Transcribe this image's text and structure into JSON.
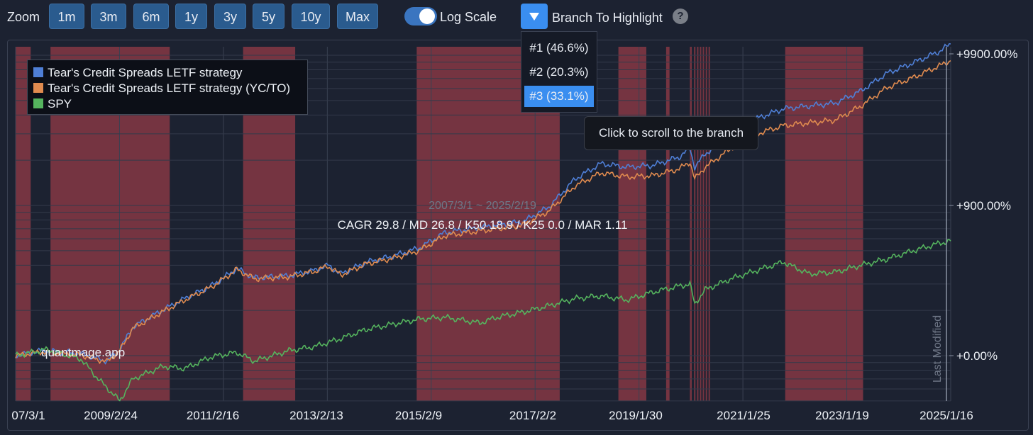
{
  "toolbar": {
    "zoom_label": "Zoom",
    "zoom_buttons": [
      "1m",
      "3m",
      "6m",
      "1y",
      "3y",
      "5y",
      "10y",
      "Max"
    ],
    "log_scale_label": "Log Scale",
    "log_scale_on": true,
    "branch_label": "Branch To Highlight",
    "help_icon": "?",
    "toggle_icon": "toggle-switch-icon",
    "dropdown_icon": "triangle-down-icon"
  },
  "branch_menu": {
    "items": [
      "#1 (46.6%)",
      "#2 (20.3%)",
      "#3 (33.1%)"
    ],
    "selected_index": 2
  },
  "tooltip": {
    "text": "Click to scroll to the branch"
  },
  "chart_data": {
    "type": "line",
    "title": "",
    "date_range_text": "2007/3/1 ~ 2025/2/19",
    "stats_text": "CAGR 29.8 / MD 26.8 / K50 18.9 / K25 0.0 / MAR 1.11",
    "watermark": "quantmage.app",
    "vertical_label": "Last Modified",
    "y_scale": "log",
    "x_ticks": [
      "07/3/1",
      "2009/2/24",
      "2011/2/16",
      "2013/2/13",
      "2015/2/9",
      "2017/2/2",
      "2019/1/30",
      "2021/1/25",
      "2023/1/19",
      "2025/1/16"
    ],
    "y_ticks": [
      "+9900.00%",
      "+900.00%",
      "+0.00%"
    ],
    "x_range": [
      "2007-03-01",
      "2025-02-19"
    ],
    "y_range_percent": [
      -60,
      13000
    ],
    "legend_position": "top-left",
    "grid": true,
    "colors": {
      "background": "#1c2231",
      "highlight_band": "#8e3a46",
      "strategy": "#4f7fd6",
      "strategy_yc": "#e08b4f",
      "spy": "#55b45e"
    },
    "highlight_periods": [
      [
        "2007-03-01",
        "2007-06-15"
      ],
      [
        "2007-11-01",
        "2010-02-15"
      ],
      [
        "2011-07-15",
        "2012-07-15"
      ],
      [
        "2014-11-15",
        "2017-08-15"
      ],
      [
        "2018-10-01",
        "2019-04-15"
      ],
      [
        "2019-09-01",
        "2019-09-25"
      ],
      [
        "2020-02-15",
        "2020-02-28"
      ],
      [
        "2020-03-15",
        "2020-03-25"
      ],
      [
        "2020-04-05",
        "2020-04-15"
      ],
      [
        "2020-04-25",
        "2020-05-05"
      ],
      [
        "2020-05-15",
        "2020-05-25"
      ],
      [
        "2020-06-05",
        "2020-06-15"
      ],
      [
        "2020-06-25",
        "2020-07-05"
      ],
      [
        "2021-12-15",
        "2023-06-15"
      ]
    ],
    "series": [
      {
        "name": "Tear's Credit Spreads LETF strategy",
        "points": [
          [
            "2007-03-01",
            0
          ],
          [
            "2007-09-01",
            8
          ],
          [
            "2008-06-01",
            3
          ],
          [
            "2008-12-01",
            -8
          ],
          [
            "2009-03-01",
            10
          ],
          [
            "2009-06-01",
            55
          ],
          [
            "2009-12-01",
            95
          ],
          [
            "2010-06-01",
            140
          ],
          [
            "2010-12-01",
            190
          ],
          [
            "2011-03-01",
            230
          ],
          [
            "2011-06-01",
            280
          ],
          [
            "2011-10-01",
            230
          ],
          [
            "2012-06-01",
            240
          ],
          [
            "2012-12-01",
            270
          ],
          [
            "2013-03-01",
            300
          ],
          [
            "2013-06-01",
            250
          ],
          [
            "2013-12-01",
            320
          ],
          [
            "2014-06-01",
            360
          ],
          [
            "2014-12-01",
            420
          ],
          [
            "2015-06-01",
            560
          ],
          [
            "2016-06-01",
            640
          ],
          [
            "2016-12-01",
            680
          ],
          [
            "2017-06-01",
            880
          ],
          [
            "2017-12-01",
            1400
          ],
          [
            "2018-06-01",
            1800
          ],
          [
            "2018-12-01",
            1700
          ],
          [
            "2019-06-01",
            1750
          ],
          [
            "2019-12-01",
            2000
          ],
          [
            "2020-02-15",
            2300
          ],
          [
            "2020-03-20",
            1700
          ],
          [
            "2020-06-01",
            2100
          ],
          [
            "2020-12-01",
            2900
          ],
          [
            "2021-06-01",
            3700
          ],
          [
            "2021-12-01",
            4300
          ],
          [
            "2022-06-01",
            4500
          ],
          [
            "2022-12-01",
            4700
          ],
          [
            "2023-06-01",
            5700
          ],
          [
            "2023-12-01",
            7500
          ],
          [
            "2024-06-01",
            8800
          ],
          [
            "2024-12-01",
            10500
          ],
          [
            "2025-02-19",
            11800
          ]
        ]
      },
      {
        "name": "Tear's Credit Spreads LETF strategy (YC/TO)",
        "points": [
          [
            "2007-03-01",
            0
          ],
          [
            "2007-09-01",
            6
          ],
          [
            "2008-06-01",
            1
          ],
          [
            "2008-12-01",
            -9
          ],
          [
            "2009-03-01",
            8
          ],
          [
            "2009-06-01",
            52
          ],
          [
            "2009-12-01",
            90
          ],
          [
            "2010-06-01",
            135
          ],
          [
            "2010-12-01",
            185
          ],
          [
            "2011-03-01",
            225
          ],
          [
            "2011-06-01",
            275
          ],
          [
            "2011-10-01",
            225
          ],
          [
            "2012-06-01",
            235
          ],
          [
            "2012-12-01",
            265
          ],
          [
            "2013-03-01",
            295
          ],
          [
            "2013-06-01",
            245
          ],
          [
            "2013-12-01",
            310
          ],
          [
            "2014-06-01",
            345
          ],
          [
            "2014-12-01",
            400
          ],
          [
            "2015-06-01",
            530
          ],
          [
            "2016-06-01",
            600
          ],
          [
            "2016-12-01",
            640
          ],
          [
            "2017-06-01",
            820
          ],
          [
            "2017-12-01",
            1250
          ],
          [
            "2018-06-01",
            1550
          ],
          [
            "2018-12-01",
            1450
          ],
          [
            "2019-06-01",
            1480
          ],
          [
            "2019-12-01",
            1650
          ],
          [
            "2020-02-15",
            1850
          ],
          [
            "2020-03-20",
            1400
          ],
          [
            "2020-06-01",
            1700
          ],
          [
            "2020-12-01",
            2300
          ],
          [
            "2021-06-01",
            2900
          ],
          [
            "2021-12-01",
            3300
          ],
          [
            "2022-06-01",
            3450
          ],
          [
            "2022-12-01",
            3600
          ],
          [
            "2023-06-01",
            4500
          ],
          [
            "2023-12-01",
            6000
          ],
          [
            "2024-06-01",
            7000
          ],
          [
            "2024-12-01",
            8400
          ],
          [
            "2025-02-19",
            9100
          ]
        ]
      },
      {
        "name": "SPY",
        "points": [
          [
            "2007-03-01",
            0
          ],
          [
            "2007-10-01",
            10
          ],
          [
            "2008-06-01",
            -5
          ],
          [
            "2008-10-01",
            -30
          ],
          [
            "2009-03-01",
            -50
          ],
          [
            "2009-06-01",
            -30
          ],
          [
            "2010-01-01",
            -15
          ],
          [
            "2010-06-01",
            -18
          ],
          [
            "2010-12-01",
            -2
          ],
          [
            "2011-06-01",
            5
          ],
          [
            "2011-10-01",
            -8
          ],
          [
            "2012-06-01",
            8
          ],
          [
            "2012-12-01",
            15
          ],
          [
            "2013-06-01",
            30
          ],
          [
            "2013-12-01",
            50
          ],
          [
            "2014-06-01",
            62
          ],
          [
            "2014-12-01",
            75
          ],
          [
            "2015-06-01",
            80
          ],
          [
            "2016-02-01",
            65
          ],
          [
            "2016-06-01",
            80
          ],
          [
            "2016-12-01",
            95
          ],
          [
            "2017-06-01",
            115
          ],
          [
            "2017-12-01",
            140
          ],
          [
            "2018-06-01",
            150
          ],
          [
            "2018-12-01",
            135
          ],
          [
            "2019-06-01",
            165
          ],
          [
            "2019-12-01",
            190
          ],
          [
            "2020-02-15",
            200
          ],
          [
            "2020-03-20",
            120
          ],
          [
            "2020-06-01",
            175
          ],
          [
            "2020-12-01",
            225
          ],
          [
            "2021-06-01",
            270
          ],
          [
            "2021-12-01",
            320
          ],
          [
            "2022-06-01",
            250
          ],
          [
            "2022-12-01",
            260
          ],
          [
            "2023-06-01",
            300
          ],
          [
            "2023-12-01",
            340
          ],
          [
            "2024-06-01",
            400
          ],
          [
            "2024-12-01",
            460
          ],
          [
            "2025-02-19",
            480
          ]
        ]
      }
    ]
  }
}
